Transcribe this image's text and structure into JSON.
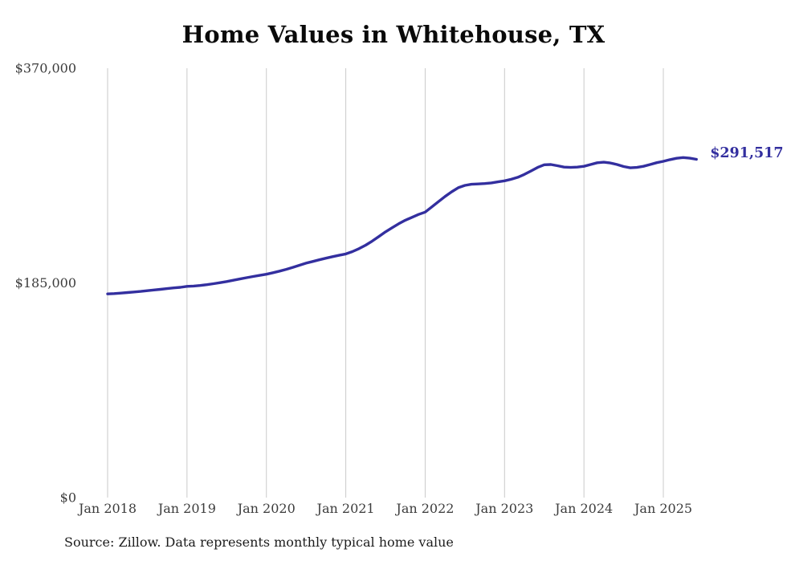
{
  "chart": {
    "title": "Home Values in Whitehouse, TX",
    "source_note": "Source: Zillow. Data represents monthly typical home value",
    "end_label": "$291,517",
    "line_color": "#332f9f",
    "grid_color": "#cacaca",
    "tick_label_color": "#3c3c3c",
    "title_color": "#0a0a0a"
  },
  "chart_data": {
    "type": "line",
    "title": "Home Values in Whitehouse, TX",
    "xlabel": "",
    "ylabel": "",
    "x_start": "2018-01",
    "x_end": "2025-06",
    "x_interval": "month",
    "ylim": [
      0,
      370000
    ],
    "grid": "vertical-only",
    "legend": "none",
    "x_tick_labels": [
      "Jan 2018",
      "Jan 2019",
      "Jan 2020",
      "Jan 2021",
      "Jan 2022",
      "Jan 2023",
      "Jan 2024",
      "Jan 2025"
    ],
    "y_ticks": [
      {
        "value": 0,
        "label": "$0"
      },
      {
        "value": 185000,
        "label": "$185,000"
      },
      {
        "value": 370000,
        "label": "$370,000"
      }
    ],
    "end_annotation": {
      "text": "$291,517",
      "value": 291517
    },
    "series": [
      {
        "name": "Monthly typical home value",
        "values": [
          175500,
          175800,
          176200,
          176700,
          177200,
          177700,
          178300,
          178900,
          179500,
          180100,
          180700,
          181200,
          182000,
          182300,
          182800,
          183500,
          184300,
          185200,
          186200,
          187300,
          188400,
          189500,
          190500,
          191500,
          192500,
          193800,
          195200,
          196700,
          198400,
          200200,
          202000,
          203500,
          204900,
          206300,
          207600,
          208800,
          210000,
          212000,
          214500,
          217500,
          221000,
          225000,
          229000,
          232500,
          236000,
          239000,
          241500,
          244000,
          246000,
          250500,
          255000,
          259500,
          263500,
          267000,
          269000,
          270000,
          270300,
          270600,
          271200,
          272100,
          273000,
          274300,
          276000,
          278500,
          281500,
          284500,
          286800,
          287000,
          286000,
          284800,
          284500,
          284800,
          285500,
          287000,
          288500,
          289000,
          288300,
          287000,
          285300,
          284200,
          284500,
          285500,
          287000,
          288600,
          289800,
          291200,
          292400,
          293000,
          292500,
          291517
        ]
      }
    ]
  }
}
